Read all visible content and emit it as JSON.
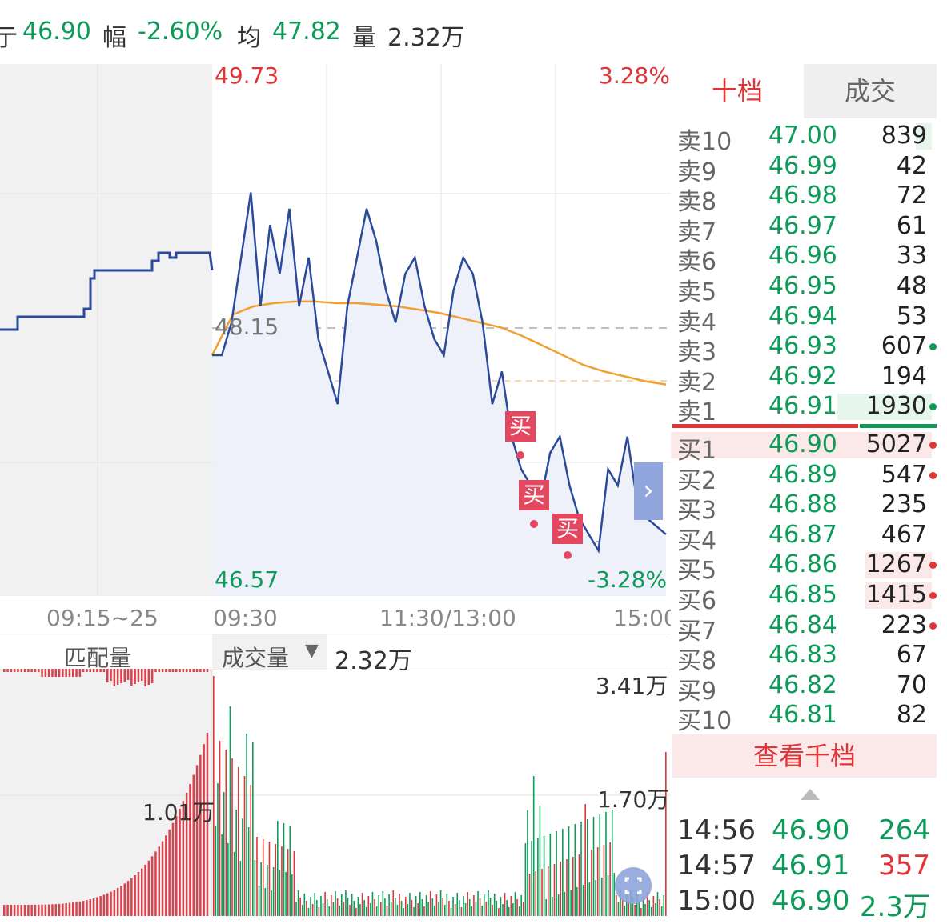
{
  "top_bar": {
    "partial_label": "亍",
    "price": "46.90",
    "change_label": "幅",
    "change_pct": "-2.60%",
    "avg_label": "均",
    "avg_price": "47.82",
    "volume_label": "量",
    "volume": "2.32万"
  },
  "chart": {
    "price_high": "49.73",
    "pct_high": "3.28%",
    "price_mid": "48.15",
    "price_low": "46.57",
    "pct_low": "-3.28%",
    "buy_mark_label": "买",
    "expand_label": "›",
    "time_preauction": "09:15~25",
    "time_open": "09:30",
    "time_mid": "11:30/13:00",
    "time_close": "15:00",
    "colors": {
      "price_line": "#2b4a9a",
      "avg_line": "#f0a030",
      "up": "#e03437",
      "down": "#0e9b5a",
      "buy_mark": "#e44760"
    },
    "price_series": [
      48.0,
      48.0,
      48.2,
      48.6,
      49.0,
      48.3,
      48.8,
      48.5,
      48.9,
      48.3,
      48.6,
      48.1,
      47.9,
      47.7,
      48.3,
      48.6,
      48.9,
      48.7,
      48.4,
      48.2,
      48.5,
      48.6,
      48.3,
      48.1,
      48.0,
      48.4,
      48.6,
      48.5,
      48.2,
      47.7,
      47.9,
      47.5,
      47.3,
      47.2,
      47.1,
      47.4,
      47.5,
      47.2,
      47.0,
      46.9,
      46.8,
      47.3,
      47.2,
      47.5,
      47.1,
      47.0,
      46.95,
      46.9
    ],
    "avg_series": [
      48.0,
      48.25,
      48.3,
      48.32,
      48.33,
      48.33,
      48.32,
      48.32,
      48.31,
      48.3,
      48.28,
      48.26,
      48.23,
      48.2,
      48.17,
      48.12,
      48.06,
      48.0,
      47.94,
      47.9,
      47.87,
      47.84,
      47.82
    ]
  },
  "volume_panel": {
    "tab_left": "匹配量",
    "selector_label": "成交量",
    "selector_arrow": "▼",
    "current_volume": "2.32万",
    "max_label": "3.41万",
    "mid_label": "1.70万",
    "preauction_label": "1.01万"
  },
  "order_book": {
    "tab_active": "十档",
    "tab_inactive": "成交",
    "asks": [
      {
        "label": "卖10",
        "price": "47.00",
        "volume": "839"
      },
      {
        "label": "卖9",
        "price": "46.99",
        "volume": "42"
      },
      {
        "label": "卖8",
        "price": "46.98",
        "volume": "72"
      },
      {
        "label": "卖7",
        "price": "46.97",
        "volume": "61"
      },
      {
        "label": "卖6",
        "price": "46.96",
        "volume": "33"
      },
      {
        "label": "卖5",
        "price": "46.95",
        "volume": "48"
      },
      {
        "label": "卖4",
        "price": "46.94",
        "volume": "53"
      },
      {
        "label": "卖3",
        "price": "46.93",
        "volume": "607"
      },
      {
        "label": "卖2",
        "price": "46.92",
        "volume": "194"
      },
      {
        "label": "卖1",
        "price": "46.91",
        "volume": "1930"
      }
    ],
    "bids": [
      {
        "label": "买1",
        "price": "46.90",
        "volume": "5027"
      },
      {
        "label": "买2",
        "price": "46.89",
        "volume": "547"
      },
      {
        "label": "买3",
        "price": "46.88",
        "volume": "235"
      },
      {
        "label": "买4",
        "price": "46.87",
        "volume": "467"
      },
      {
        "label": "买5",
        "price": "46.86",
        "volume": "1267"
      },
      {
        "label": "买6",
        "price": "46.85",
        "volume": "1415"
      },
      {
        "label": "买7",
        "price": "46.84",
        "volume": "223"
      },
      {
        "label": "买8",
        "price": "46.83",
        "volume": "67"
      },
      {
        "label": "买9",
        "price": "46.82",
        "volume": "70"
      },
      {
        "label": "买10",
        "price": "46.81",
        "volume": "82"
      }
    ],
    "view_more": "查看千档",
    "collapse_icon": "triangle-up-icon",
    "trades": [
      {
        "time": "14:56",
        "price": "46.90",
        "volume": "264",
        "side": "down"
      },
      {
        "time": "14:57",
        "price": "46.91",
        "volume": "357",
        "side": "up"
      },
      {
        "time": "15:00",
        "price": "46.90",
        "volume": "2.3万",
        "side": "down"
      }
    ]
  }
}
